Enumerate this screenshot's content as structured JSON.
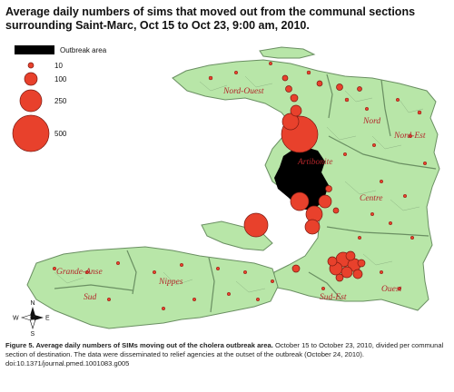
{
  "title": "Average daily numbers of sims that moved out from the communal sections surrounding Saint-Marc, Oct 15 to Oct 23, 9:00 am, 2010.",
  "legend": {
    "outbreak_label": "Outbreak area",
    "sizes": [
      {
        "label": "10",
        "value": 10
      },
      {
        "label": "100",
        "value": 100
      },
      {
        "label": "250",
        "value": 250
      },
      {
        "label": "500",
        "value": 500
      }
    ],
    "circle_color": "#e8412c",
    "outbreak_color": "#000000"
  },
  "regions": [
    "Nord-Ouest",
    "Nord",
    "Nord-Est",
    "Artibonite",
    "Centre",
    "Grande-Anse",
    "Nippes",
    "Sud",
    "Sud-Est",
    "Ouest"
  ],
  "compass": {
    "n": "N",
    "s": "S",
    "e": "E",
    "w": "W"
  },
  "colors": {
    "land": "#b8e6a8",
    "border": "#6a8f62",
    "label": "#b3262a"
  },
  "caption": {
    "figure_label": "Figure 5. Average daily numbers of SIMs moving out of the cholera outbreak area.",
    "text": "October 15 to October 23, 2010, divided per communal section of destination. The data were disseminated to relief agencies at the outset of the outbreak (October 24, 2010). doi:10.1371/journal.pmed.1001083.g005"
  }
}
